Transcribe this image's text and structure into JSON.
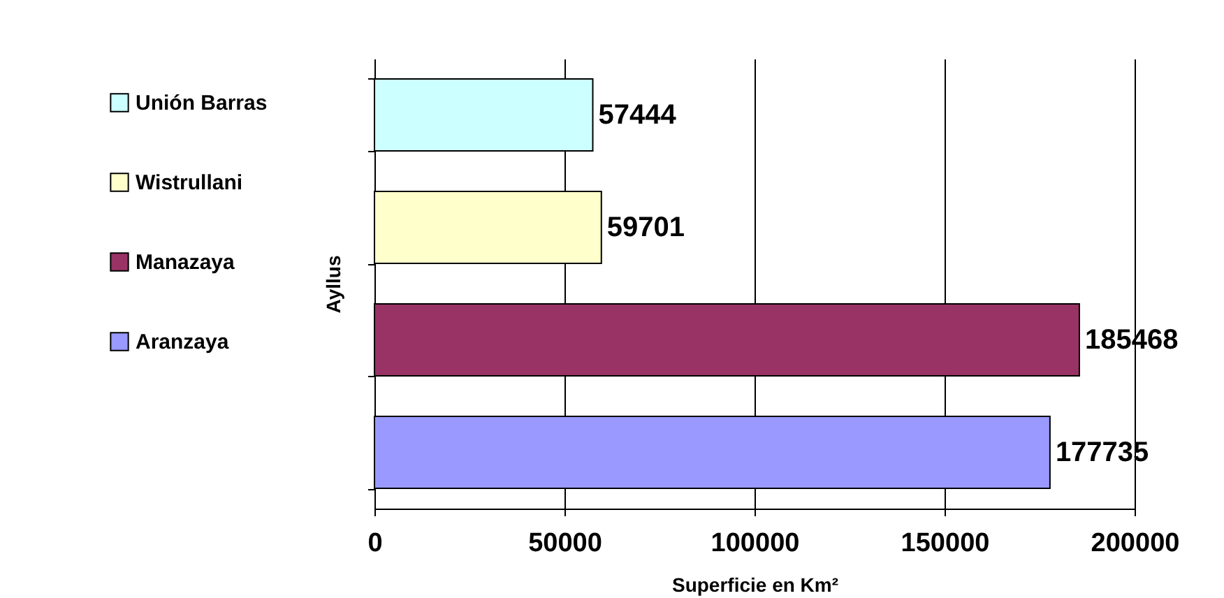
{
  "chart_data": {
    "type": "bar",
    "orientation": "horizontal",
    "categories": [
      null,
      null,
      null,
      null
    ],
    "series": [
      {
        "name": "Unión Barras",
        "color": "#ccffff",
        "values": [
          57444,
          null,
          null,
          null
        ]
      },
      {
        "name": "Wistrullani",
        "color": "#ffffcc",
        "values": [
          null,
          59701,
          null,
          null
        ]
      },
      {
        "name": "Manazaya",
        "color": "#993366",
        "values": [
          null,
          null,
          185468,
          null
        ]
      },
      {
        "name": "Aranzaya",
        "color": "#9999ff",
        "values": [
          null,
          null,
          null,
          177735
        ]
      }
    ],
    "xlim": [
      0,
      200000
    ],
    "xticks": [
      0,
      50000,
      100000,
      150000,
      200000
    ],
    "xlabel": "Superficie en Km²",
    "ylabel": "Ayllus",
    "grid": "x",
    "data_labels": true,
    "legend": "left",
    "tick_labels": "x"
  }
}
